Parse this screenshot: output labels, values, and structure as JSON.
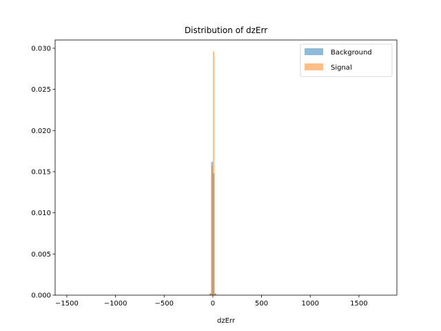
{
  "chart_data": {
    "type": "bar",
    "title": "Distribution of dzErr",
    "xlabel": "dzErr",
    "ylabel": "",
    "xlim": [
      -1620,
      1890
    ],
    "ylim": [
      0,
      0.031
    ],
    "xticks": [
      -1500,
      -1000,
      -500,
      0,
      500,
      1000,
      1500
    ],
    "xtick_labels": [
      "−1500",
      "−1000",
      "−500",
      "0",
      "500",
      "1000",
      "1500"
    ],
    "yticks": [
      0.0,
      0.005,
      0.01,
      0.015,
      0.02,
      0.025,
      0.03
    ],
    "ytick_labels": [
      "0.000",
      "0.005",
      "0.010",
      "0.015",
      "0.020",
      "0.025",
      "0.030"
    ],
    "legend_position": "top-right",
    "series": [
      {
        "name": "Background",
        "color": "#1f77b4",
        "opacity": 0.5,
        "bins": [
          {
            "x0": -35,
            "x1": -17,
            "value": 0.0002
          },
          {
            "x0": -17,
            "x1": 0,
            "value": 0.0162
          },
          {
            "x0": 0,
            "x1": 17,
            "value": 0.0148
          },
          {
            "x0": 17,
            "x1": 35,
            "value": 0.0002
          }
        ]
      },
      {
        "name": "Signal",
        "color": "#ff7f0e",
        "opacity": 0.5,
        "bins": [
          {
            "x0": -35,
            "x1": -17,
            "value": 0.0002
          },
          {
            "x0": -17,
            "x1": 0,
            "value": 0.0158
          },
          {
            "x0": 0,
            "x1": 17,
            "value": 0.0296
          },
          {
            "x0": 17,
            "x1": 35,
            "value": 0.0002
          }
        ]
      }
    ]
  }
}
